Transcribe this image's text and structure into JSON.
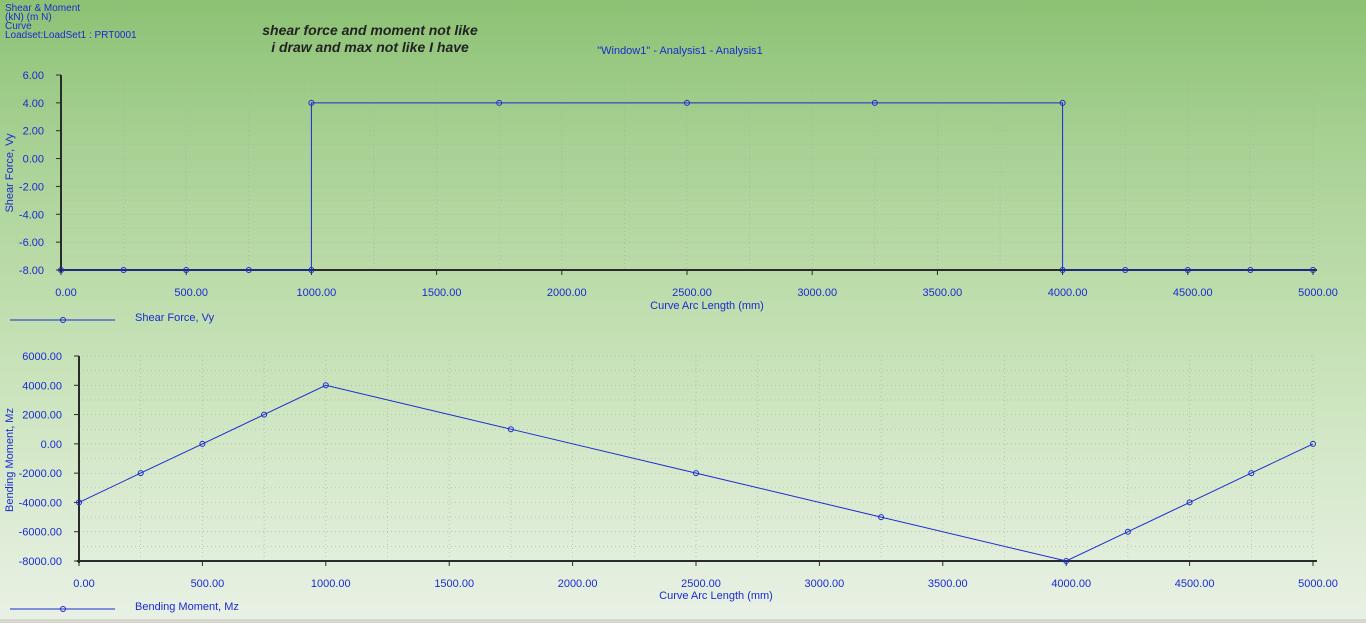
{
  "header": {
    "line1": "Shear & Moment",
    "line2": "(kN)  (m N)",
    "line3": "Curve",
    "line4": "Loadset:LoadSet1 :  PRT0001"
  },
  "annotation": {
    "line1": "shear force and moment not like",
    "line2": "i draw and max not like I have"
  },
  "window_title": "\"Window1\" - Analysis1 - Analysis1",
  "colors": {
    "series": "#1a2bd0",
    "axis": "#2a2a2a",
    "background_top": "#8cc274",
    "background_bottom": "#e9f1e6"
  },
  "chart_data": [
    {
      "type": "line",
      "xlabel": "Curve Arc Length (mm)",
      "ylabel": "Shear Force, Vy",
      "xlim": [
        0,
        5000
      ],
      "ylim": [
        -8,
        6
      ],
      "x_ticks": [
        "0.00",
        "500.00",
        "1000.00",
        "1500.00",
        "2000.00",
        "2500.00",
        "3000.00",
        "3500.00",
        "4000.00",
        "4500.00",
        "5000.00"
      ],
      "y_ticks": [
        "6.00",
        "4.00",
        "2.00",
        "0.00",
        "-2.00",
        "-4.00",
        "-6.00",
        "-8.00"
      ],
      "grid": true,
      "legend_position": "bottom-left",
      "series": [
        {
          "name": "Shear Force, Vy",
          "points": [
            [
              0,
              -8
            ],
            [
              250,
              -8
            ],
            [
              500,
              -8
            ],
            [
              750,
              -8
            ],
            [
              1000,
              -8
            ],
            [
              1000,
              4
            ],
            [
              1750,
              4
            ],
            [
              2500,
              4
            ],
            [
              3250,
              4
            ],
            [
              4000,
              4
            ],
            [
              4000,
              -8
            ],
            [
              4250,
              -8
            ],
            [
              4500,
              -8
            ],
            [
              4750,
              -8
            ],
            [
              5000,
              -8
            ]
          ]
        }
      ]
    },
    {
      "type": "line",
      "xlabel": "Curve Arc Length (mm)",
      "ylabel": "Bending Moment, Mz",
      "xlim": [
        0,
        5000
      ],
      "ylim": [
        -8000,
        6000
      ],
      "x_ticks": [
        "0.00",
        "500.00",
        "1000.00",
        "1500.00",
        "2000.00",
        "2500.00",
        "3000.00",
        "3500.00",
        "4000.00",
        "4500.00",
        "5000.00"
      ],
      "y_ticks": [
        "6000.00",
        "4000.00",
        "2000.00",
        "0.00",
        "-2000.00",
        "-4000.00",
        "-6000.00",
        "-8000.00"
      ],
      "grid": true,
      "legend_position": "bottom-left",
      "series": [
        {
          "name": "Bending Moment, Mz",
          "points": [
            [
              0,
              -4000
            ],
            [
              250,
              -2000
            ],
            [
              500,
              0
            ],
            [
              750,
              2000
            ],
            [
              1000,
              4000
            ],
            [
              1750,
              1000
            ],
            [
              2500,
              -2000
            ],
            [
              3250,
              -5000
            ],
            [
              4000,
              -8000
            ],
            [
              4250,
              -6000
            ],
            [
              4500,
              -4000
            ],
            [
              4750,
              -2000
            ],
            [
              5000,
              0
            ]
          ]
        }
      ]
    }
  ]
}
